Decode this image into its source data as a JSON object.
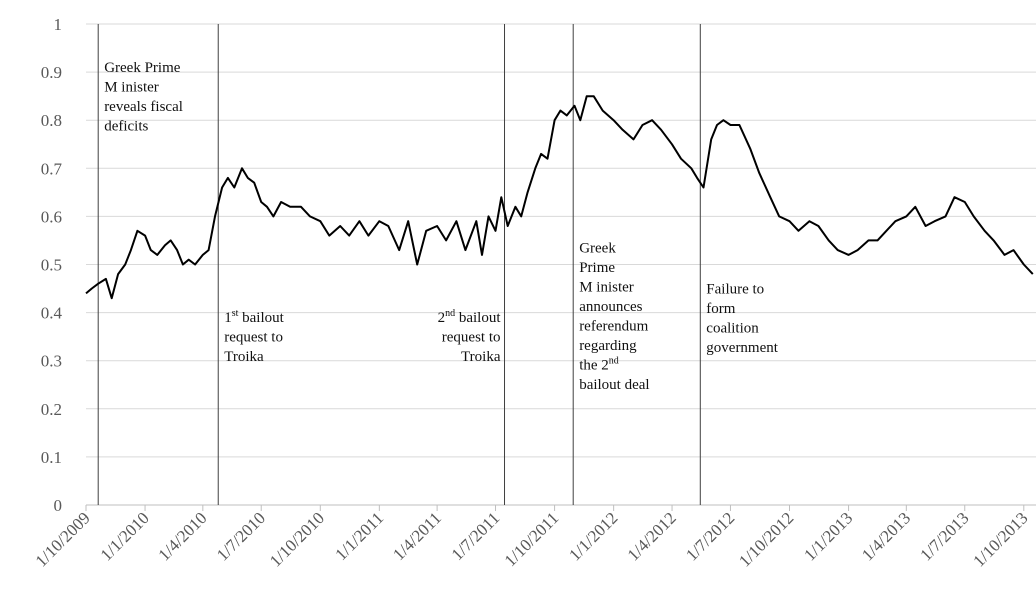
{
  "chart_data": {
    "type": "line",
    "title": "",
    "xlabel": "",
    "ylabel": "",
    "ylim": [
      0,
      1
    ],
    "yticks": [
      "0",
      "0.1",
      "0.2",
      "0.3",
      "0.4",
      "0.5",
      "0.6",
      "0.7",
      "0.8",
      "0.9",
      "1"
    ],
    "xlim": [
      "2009-10-01",
      "2013-10-20"
    ],
    "xticks": [
      {
        "date": "2009-10-01",
        "label": "1/10/2009"
      },
      {
        "date": "2010-01-01",
        "label": "1/1/2010"
      },
      {
        "date": "2010-04-01",
        "label": "1/4/2010"
      },
      {
        "date": "2010-07-01",
        "label": "1/7/2010"
      },
      {
        "date": "2010-10-01",
        "label": "1/10/2010"
      },
      {
        "date": "2011-01-01",
        "label": "1/1/2011"
      },
      {
        "date": "2011-04-01",
        "label": "1/4/2011"
      },
      {
        "date": "2011-07-01",
        "label": "1/7/2011"
      },
      {
        "date": "2011-10-01",
        "label": "1/10/2011"
      },
      {
        "date": "2012-01-01",
        "label": "1/1/2012"
      },
      {
        "date": "2012-04-01",
        "label": "1/4/2012"
      },
      {
        "date": "2012-07-01",
        "label": "1/7/2012"
      },
      {
        "date": "2012-10-01",
        "label": "1/10/2012"
      },
      {
        "date": "2013-01-01",
        "label": "1/1/2013"
      },
      {
        "date": "2013-04-01",
        "label": "1/4/2013"
      },
      {
        "date": "2013-07-01",
        "label": "1/7/2013"
      },
      {
        "date": "2013-10-01",
        "label": "1/10/2013"
      }
    ],
    "grid": true,
    "series": [
      {
        "color": "#000000",
        "x": [
          "2009-10-01",
          "2009-10-10",
          "2009-10-20",
          "2009-11-01",
          "2009-11-10",
          "2009-11-20",
          "2009-12-01",
          "2009-12-10",
          "2009-12-20",
          "2010-01-01",
          "2010-01-10",
          "2010-01-20",
          "2010-02-01",
          "2010-02-10",
          "2010-02-20",
          "2010-03-01",
          "2010-03-10",
          "2010-03-20",
          "2010-04-01",
          "2010-04-10",
          "2010-04-20",
          "2010-05-01",
          "2010-05-10",
          "2010-05-20",
          "2010-06-01",
          "2010-06-10",
          "2010-06-20",
          "2010-07-01",
          "2010-07-10",
          "2010-07-20",
          "2010-08-01",
          "2010-08-15",
          "2010-09-01",
          "2010-09-15",
          "2010-10-01",
          "2010-10-15",
          "2010-11-01",
          "2010-11-15",
          "2010-12-01",
          "2010-12-15",
          "2011-01-01",
          "2011-01-15",
          "2011-02-01",
          "2011-02-15",
          "2011-03-01",
          "2011-03-15",
          "2011-04-01",
          "2011-04-15",
          "2011-05-01",
          "2011-05-15",
          "2011-06-01",
          "2011-06-10",
          "2011-06-20",
          "2011-07-01",
          "2011-07-10",
          "2011-07-20",
          "2011-08-01",
          "2011-08-10",
          "2011-08-20",
          "2011-09-01",
          "2011-09-10",
          "2011-09-20",
          "2011-10-01",
          "2011-10-10",
          "2011-10-20",
          "2011-11-01",
          "2011-11-10",
          "2011-11-20",
          "2011-12-01",
          "2011-12-15",
          "2012-01-01",
          "2012-01-15",
          "2012-02-01",
          "2012-02-15",
          "2012-03-01",
          "2012-03-15",
          "2012-04-01",
          "2012-04-15",
          "2012-05-01",
          "2012-05-10",
          "2012-05-20",
          "2012-06-01",
          "2012-06-10",
          "2012-06-20",
          "2012-07-01",
          "2012-07-15",
          "2012-08-01",
          "2012-08-15",
          "2012-09-01",
          "2012-09-15",
          "2012-10-01",
          "2012-10-15",
          "2012-11-01",
          "2012-11-15",
          "2012-12-01",
          "2012-12-15",
          "2013-01-01",
          "2013-01-15",
          "2013-02-01",
          "2013-02-15",
          "2013-03-01",
          "2013-03-15",
          "2013-04-01",
          "2013-04-15",
          "2013-05-01",
          "2013-05-15",
          "2013-06-01",
          "2013-06-15",
          "2013-07-01",
          "2013-07-15",
          "2013-08-01",
          "2013-08-15",
          "2013-09-01",
          "2013-09-15",
          "2013-10-01",
          "2013-10-15"
        ],
        "y": [
          0.44,
          0.45,
          0.46,
          0.47,
          0.43,
          0.48,
          0.5,
          0.53,
          0.57,
          0.56,
          0.53,
          0.52,
          0.54,
          0.55,
          0.53,
          0.5,
          0.51,
          0.5,
          0.52,
          0.53,
          0.6,
          0.66,
          0.68,
          0.66,
          0.7,
          0.68,
          0.67,
          0.63,
          0.62,
          0.6,
          0.63,
          0.62,
          0.62,
          0.6,
          0.59,
          0.56,
          0.58,
          0.56,
          0.59,
          0.56,
          0.59,
          0.58,
          0.53,
          0.59,
          0.5,
          0.57,
          0.58,
          0.55,
          0.59,
          0.53,
          0.59,
          0.52,
          0.6,
          0.57,
          0.64,
          0.58,
          0.62,
          0.6,
          0.65,
          0.7,
          0.73,
          0.72,
          0.8,
          0.82,
          0.81,
          0.83,
          0.8,
          0.85,
          0.85,
          0.82,
          0.8,
          0.78,
          0.76,
          0.79,
          0.8,
          0.78,
          0.75,
          0.72,
          0.7,
          0.68,
          0.66,
          0.76,
          0.79,
          0.8,
          0.79,
          0.79,
          0.74,
          0.69,
          0.64,
          0.6,
          0.59,
          0.57,
          0.59,
          0.58,
          0.55,
          0.53,
          0.52,
          0.53,
          0.55,
          0.55,
          0.57,
          0.59,
          0.6,
          0.62,
          0.58,
          0.59,
          0.6,
          0.64,
          0.63,
          0.6,
          0.57,
          0.55,
          0.52,
          0.53,
          0.5,
          0.48
        ]
      }
    ],
    "events": [
      {
        "date": "2009-10-20",
        "lines": [
          [
            "Greek Prime"
          ],
          [
            "M inister"
          ],
          [
            "reveals fiscal"
          ],
          [
            "deficits"
          ]
        ],
        "y": 0.9,
        "anchor": "start"
      },
      {
        "date": "2010-04-25",
        "lines": [
          [
            "1",
            "st",
            " bailout"
          ],
          [
            "request to"
          ],
          [
            "Troika"
          ]
        ],
        "y": 0.38,
        "anchor": "start"
      },
      {
        "date": "2011-07-15",
        "lines": [
          [
            "2",
            "nd",
            " bailout"
          ],
          [
            "request to"
          ],
          [
            "Troika"
          ]
        ],
        "y": 0.38,
        "anchor": "end"
      },
      {
        "date": "2011-10-30",
        "lines": [
          [
            "Greek"
          ],
          [
            "Prime"
          ],
          [
            "M inister"
          ],
          [
            "announces"
          ],
          [
            "referendum"
          ],
          [
            "regarding"
          ],
          [
            "the 2",
            "nd"
          ],
          [
            "bailout deal"
          ]
        ],
        "y": 0.525,
        "anchor": "start"
      },
      {
        "date": "2012-05-15",
        "lines": [
          [
            "Failure to"
          ],
          [
            "form"
          ],
          [
            "coalition"
          ],
          [
            "government"
          ]
        ],
        "y": 0.44,
        "anchor": "start"
      }
    ]
  }
}
